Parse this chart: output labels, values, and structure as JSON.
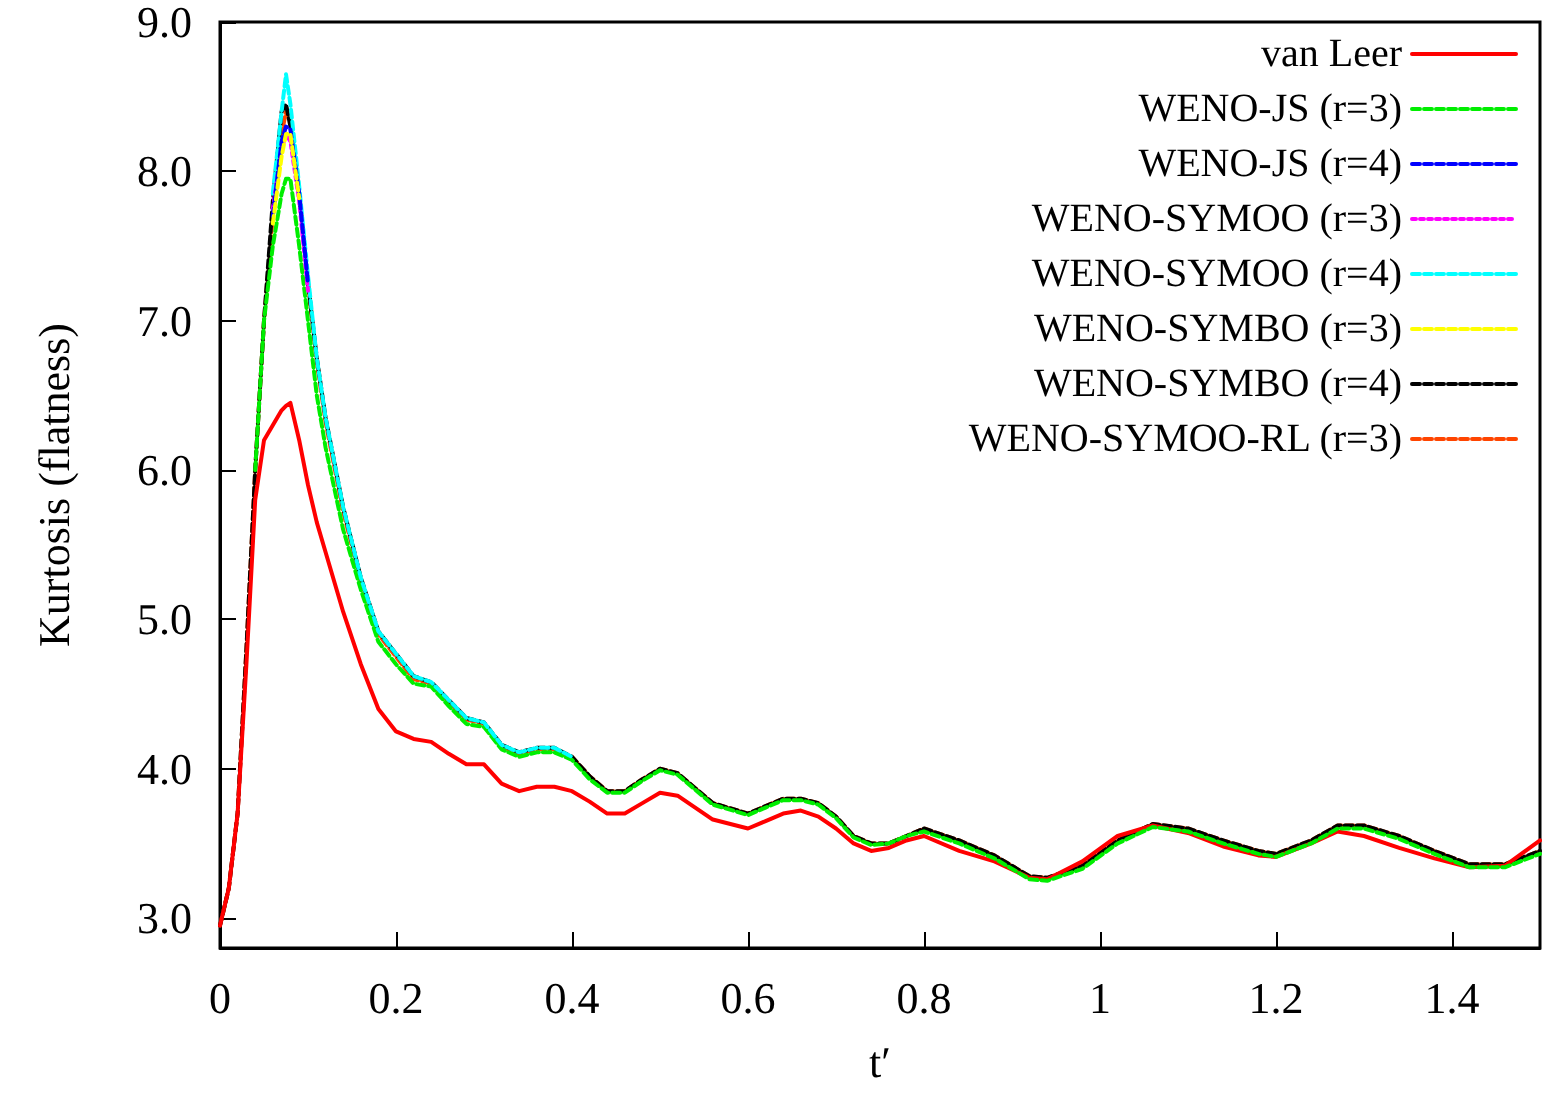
{
  "chart_data": {
    "type": "line",
    "xlabel": "t′",
    "ylabel": "Kurtosis (flatness)",
    "xlim": [
      0,
      1.5
    ],
    "ylim": [
      2.8,
      9.0
    ],
    "xticks": [
      0,
      0.2,
      0.4,
      0.6,
      0.8,
      1,
      1.2,
      1.4
    ],
    "yticks": [
      {
        "value": 3,
        "label": "3.0"
      },
      {
        "value": 4,
        "label": "4.0"
      },
      {
        "value": 5,
        "label": "5.0"
      },
      {
        "value": 6,
        "label": "6.0"
      },
      {
        "value": 7,
        "label": "7.0"
      },
      {
        "value": 8,
        "label": "8.0"
      },
      {
        "value": 9,
        "label": "9.0"
      }
    ],
    "grid": false,
    "legend": "top right",
    "marker": "none",
    "x": [
      0,
      0.01,
      0.02,
      0.03,
      0.04,
      0.05,
      0.06,
      0.07,
      0.075,
      0.08,
      0.09,
      0.1,
      0.11,
      0.12,
      0.14,
      0.16,
      0.18,
      0.2,
      0.22,
      0.24,
      0.26,
      0.28,
      0.3,
      0.32,
      0.34,
      0.36,
      0.38,
      0.4,
      0.42,
      0.44,
      0.46,
      0.48,
      0.5,
      0.52,
      0.54,
      0.56,
      0.6,
      0.62,
      0.64,
      0.66,
      0.68,
      0.7,
      0.72,
      0.74,
      0.76,
      0.78,
      0.8,
      0.84,
      0.88,
      0.92,
      0.94,
      0.98,
      1.02,
      1.06,
      1.1,
      1.14,
      1.18,
      1.2,
      1.24,
      1.27,
      1.3,
      1.34,
      1.38,
      1.42,
      1.46,
      1.5
    ],
    "series": [
      {
        "name": "van Leer",
        "color": "#ff0000",
        "line_style": "solid",
        "values": [
          2.95,
          3.2,
          3.7,
          4.7,
          5.8,
          6.2,
          6.3,
          6.4,
          6.43,
          6.45,
          6.2,
          5.9,
          5.65,
          5.45,
          5.05,
          4.7,
          4.4,
          4.25,
          4.2,
          4.18,
          4.1,
          4.03,
          4.03,
          3.9,
          3.85,
          3.88,
          3.88,
          3.85,
          3.78,
          3.7,
          3.7,
          3.77,
          3.84,
          3.82,
          3.74,
          3.66,
          3.6,
          3.65,
          3.7,
          3.72,
          3.68,
          3.6,
          3.5,
          3.45,
          3.47,
          3.52,
          3.55,
          3.45,
          3.38,
          3.27,
          3.26,
          3.38,
          3.55,
          3.62,
          3.57,
          3.48,
          3.42,
          3.41,
          3.5,
          3.58,
          3.55,
          3.47,
          3.4,
          3.34,
          3.35,
          3.52
        ]
      },
      {
        "name": "WENO-JS (r=3)",
        "color": "#00ee00",
        "line_style": "dashed",
        "values": [
          null,
          null,
          null,
          null,
          6.0,
          7.0,
          7.5,
          7.85,
          7.95,
          7.95,
          7.5,
          7.0,
          6.5,
          6.15,
          5.6,
          5.2,
          4.85,
          4.7,
          4.57,
          4.55,
          4.42,
          4.3,
          4.28,
          4.13,
          4.08,
          4.11,
          4.11,
          4.06,
          3.93,
          3.84,
          3.84,
          3.92,
          3.99,
          3.96,
          3.86,
          3.76,
          3.69,
          3.74,
          3.79,
          3.79,
          3.76,
          3.67,
          3.54,
          3.49,
          3.5,
          3.55,
          3.58,
          3.5,
          3.4,
          3.26,
          3.25,
          3.33,
          3.5,
          3.61,
          3.58,
          3.5,
          3.43,
          3.41,
          3.5,
          3.6,
          3.6,
          3.53,
          3.43,
          3.34,
          3.34,
          3.43
        ]
      },
      {
        "name": "WENO-JS (r=4)",
        "color": "#0000ff",
        "line_style": "dashed",
        "values": [
          null,
          null,
          null,
          null,
          null,
          null,
          7.7,
          8.2,
          8.3,
          8.28,
          7.85,
          7.25,
          null,
          null,
          null,
          null,
          null,
          null,
          null,
          null,
          null,
          null,
          null,
          null,
          null,
          null,
          null,
          null,
          null,
          null,
          null,
          null,
          null,
          null,
          null,
          null,
          null,
          null,
          null,
          null,
          null,
          null,
          null,
          null,
          null,
          null,
          null,
          null,
          null,
          null,
          null,
          null,
          null,
          null,
          null,
          null,
          null,
          null,
          null,
          null,
          null,
          null,
          null,
          null,
          null,
          null
        ]
      },
      {
        "name": "WENO-SYMOO (r=3)",
        "color": "#ff00ff",
        "line_style": "dotted",
        "values": [
          null,
          null,
          null,
          null,
          null,
          null,
          7.75,
          8.15,
          8.25,
          8.2,
          7.8,
          7.2,
          null,
          null,
          null,
          null,
          null,
          null,
          null,
          null,
          null,
          null,
          null,
          null,
          null,
          null,
          null,
          null,
          null,
          null,
          null,
          null,
          null,
          null,
          null,
          null,
          null,
          null,
          null,
          null,
          null,
          null,
          null,
          null,
          null,
          null,
          null,
          null,
          null,
          null,
          null,
          null,
          null,
          null,
          null,
          null,
          null,
          null,
          null,
          null,
          null,
          null,
          null,
          null,
          null,
          null
        ]
      },
      {
        "name": "WENO-SYMOO (r=4)",
        "color": "#00ffff",
        "line_style": "dashed",
        "values": [
          null,
          null,
          null,
          null,
          null,
          null,
          7.85,
          8.4,
          8.65,
          8.45,
          7.9,
          7.3,
          6.75,
          6.35,
          5.75,
          5.28,
          4.92,
          4.77,
          4.62,
          4.58,
          4.46,
          4.34,
          4.31,
          4.16,
          4.11,
          4.14,
          4.14,
          4.08,
          null,
          null,
          null,
          null,
          null,
          null,
          null,
          null,
          null,
          null,
          null,
          null,
          null,
          null,
          null,
          null,
          null,
          null,
          null,
          null,
          null,
          null,
          null,
          null,
          null,
          null,
          null,
          null,
          null,
          null,
          null,
          null,
          null,
          null,
          null,
          null,
          null,
          null
        ]
      },
      {
        "name": "WENO-SYMBO (r=3)",
        "color": "#ffff00",
        "line_style": "dashed",
        "values": [
          null,
          null,
          null,
          null,
          null,
          null,
          7.65,
          8.1,
          8.25,
          8.25,
          7.82,
          null,
          null,
          null,
          null,
          null,
          null,
          null,
          null,
          null,
          null,
          null,
          null,
          null,
          null,
          null,
          null,
          null,
          null,
          null,
          null,
          null,
          null,
          null,
          null,
          null,
          null,
          null,
          null,
          null,
          null,
          null,
          null,
          null,
          null,
          null,
          null,
          null,
          null,
          null,
          null,
          null,
          null,
          null,
          null,
          null,
          null,
          null,
          null,
          null,
          null,
          null,
          null,
          null,
          null,
          null
        ]
      },
      {
        "name": "WENO-SYMBO (r=4)",
        "color": "#000000",
        "line_style": "dashed",
        "values": [
          2.95,
          3.2,
          3.7,
          4.8,
          6.0,
          7.0,
          7.8,
          8.4,
          8.45,
          8.3,
          7.85,
          7.25,
          6.75,
          6.35,
          5.75,
          5.28,
          4.92,
          4.77,
          4.62,
          4.58,
          4.46,
          4.34,
          4.31,
          4.16,
          4.11,
          4.14,
          4.14,
          4.08,
          3.95,
          3.85,
          3.85,
          3.93,
          4.0,
          3.97,
          3.87,
          3.77,
          3.7,
          3.75,
          3.8,
          3.8,
          3.77,
          3.68,
          3.55,
          3.5,
          3.5,
          3.55,
          3.6,
          3.52,
          3.42,
          3.28,
          3.27,
          3.35,
          3.52,
          3.63,
          3.6,
          3.52,
          3.45,
          3.43,
          3.52,
          3.62,
          3.62,
          3.55,
          3.45,
          3.36,
          3.36,
          3.45
        ]
      },
      {
        "name": "WENO-SYMOO-RL (r=3)",
        "color": "#ff4500",
        "line_style": "dashed",
        "values": [
          2.95,
          3.2,
          3.7,
          4.8,
          6.0,
          7.0,
          7.7,
          8.25,
          8.4,
          8.35,
          7.85,
          7.25,
          6.72,
          6.32,
          5.72,
          5.26,
          4.9,
          4.75,
          4.6,
          4.57,
          4.45,
          4.33,
          4.3,
          4.15,
          4.1,
          4.13,
          4.13,
          4.08,
          3.95,
          3.85,
          3.85,
          3.93,
          4.0,
          3.97,
          3.87,
          3.77,
          3.7,
          3.75,
          3.8,
          3.8,
          3.77,
          3.68,
          3.55,
          3.5,
          3.5,
          3.55,
          3.6,
          3.52,
          3.42,
          3.28,
          3.27,
          3.35,
          3.52,
          3.63,
          3.6,
          3.52,
          3.45,
          3.43,
          3.52,
          3.62,
          3.62,
          3.55,
          3.45,
          3.36,
          3.36,
          3.45
        ]
      }
    ]
  }
}
